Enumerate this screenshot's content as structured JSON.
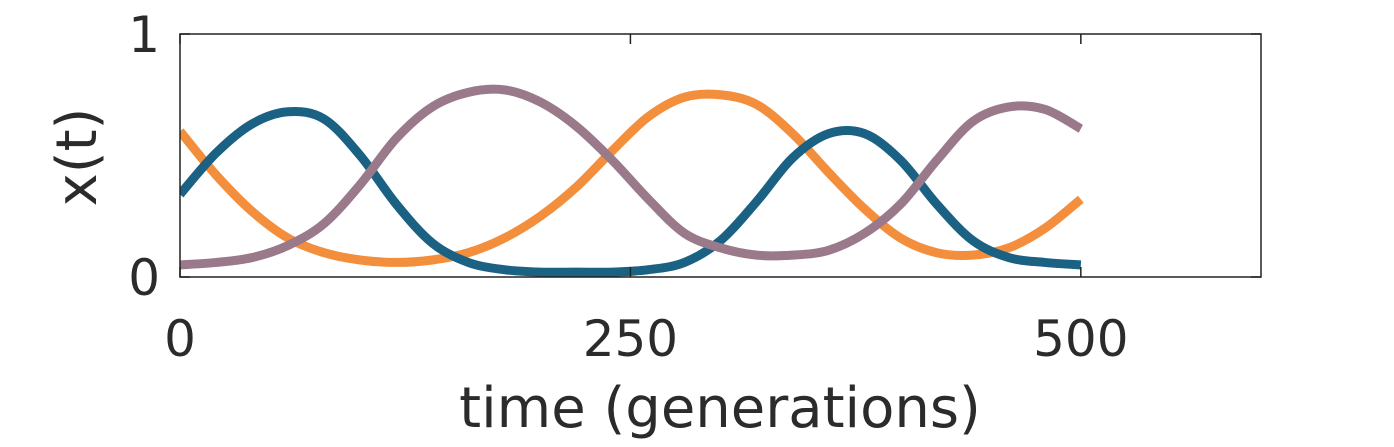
{
  "chart_data": {
    "type": "line",
    "title": "",
    "xlabel": "time (generations)",
    "ylabel": "x(t)",
    "xlim": [
      0,
      600
    ],
    "ylim": [
      0,
      1
    ],
    "xticks": [
      0,
      250,
      500
    ],
    "xtick_labels": [
      "0",
      "250",
      "500"
    ],
    "yticks": [
      0,
      1
    ],
    "ytick_labels": [
      "0",
      "1"
    ],
    "grid": false,
    "legend": "none",
    "x": [
      0,
      20,
      40,
      60,
      80,
      100,
      120,
      140,
      160,
      180,
      200,
      220,
      240,
      260,
      280,
      300,
      320,
      340,
      360,
      380,
      400,
      420,
      440,
      460,
      480,
      500
    ],
    "series": [
      {
        "color": "#f28e3c",
        "values": [
          0.6,
          0.42,
          0.27,
          0.16,
          0.1,
          0.07,
          0.06,
          0.07,
          0.1,
          0.16,
          0.25,
          0.37,
          0.52,
          0.66,
          0.74,
          0.75,
          0.71,
          0.59,
          0.43,
          0.28,
          0.16,
          0.1,
          0.09,
          0.12,
          0.2,
          0.32
        ]
      },
      {
        "color": "#1a6184",
        "values": [
          0.34,
          0.51,
          0.63,
          0.68,
          0.65,
          0.5,
          0.3,
          0.14,
          0.06,
          0.03,
          0.02,
          0.02,
          0.02,
          0.03,
          0.06,
          0.15,
          0.31,
          0.49,
          0.59,
          0.59,
          0.48,
          0.3,
          0.15,
          0.08,
          0.06,
          0.05
        ]
      },
      {
        "color": "#9a7a8a",
        "values": [
          0.05,
          0.06,
          0.08,
          0.13,
          0.22,
          0.38,
          0.57,
          0.7,
          0.76,
          0.77,
          0.72,
          0.62,
          0.48,
          0.32,
          0.18,
          0.12,
          0.09,
          0.09,
          0.11,
          0.18,
          0.3,
          0.48,
          0.64,
          0.7,
          0.69,
          0.61
        ]
      }
    ]
  }
}
